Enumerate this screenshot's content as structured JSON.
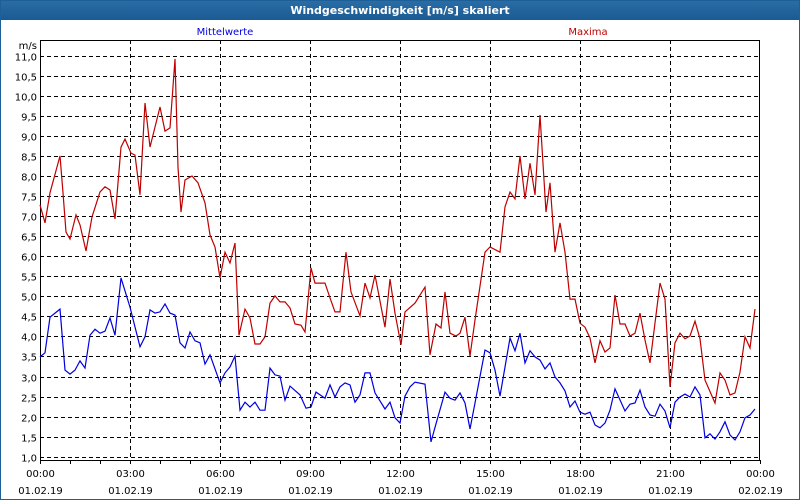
{
  "window": {
    "title": "Windgeschwindigkeit [m/s] skaliert"
  },
  "colors": {
    "mean": "#0000e0",
    "max": "#c00000",
    "frame": "#1d5f97"
  },
  "chart_data": {
    "type": "line",
    "title": "Windgeschwindigkeit [m/s] skaliert",
    "ylabel": "m/s",
    "xlabel": "",
    "ylim": [
      1.0,
      11.0
    ],
    "xlim_minutes": [
      0,
      1440
    ],
    "grid": true,
    "y_ticks": [
      "1,0",
      "1,5",
      "2,0",
      "2,5",
      "3,0",
      "3,5",
      "4,0",
      "4,5",
      "5,0",
      "5,5",
      "6,0",
      "6,5",
      "7,0",
      "7,5",
      "8,0",
      "8,5",
      "9,0",
      "9,5",
      "10,0",
      "10,5",
      "11,0"
    ],
    "x_ticks": [
      {
        "time": "00:00",
        "date": "01.02.19"
      },
      {
        "time": "03:00",
        "date": "01.02.19"
      },
      {
        "time": "06:00",
        "date": "01.02.19"
      },
      {
        "time": "09:00",
        "date": "01.02.19"
      },
      {
        "time": "12:00",
        "date": "01.02.19"
      },
      {
        "time": "15:00",
        "date": "01.02.19"
      },
      {
        "time": "18:00",
        "date": "01.02.19"
      },
      {
        "time": "21:00",
        "date": "01.02.19"
      },
      {
        "time": "00:00",
        "date": "02.02.19"
      }
    ],
    "series": [
      {
        "name": "Mittelwerte",
        "color": "#0000e0",
        "points_minute_value": [
          [
            0,
            3.49
          ],
          [
            10,
            3.59
          ],
          [
            20,
            4.48
          ],
          [
            40,
            4.68
          ],
          [
            50,
            3.16
          ],
          [
            60,
            3.06
          ],
          [
            70,
            3.16
          ],
          [
            80,
            3.39
          ],
          [
            90,
            3.21
          ],
          [
            100,
            4.03
          ],
          [
            110,
            4.18
          ],
          [
            120,
            4.08
          ],
          [
            130,
            4.13
          ],
          [
            140,
            4.46
          ],
          [
            150,
            4.03
          ],
          [
            162,
            5.46
          ],
          [
            180,
            4.73
          ],
          [
            200,
            3.74
          ],
          [
            210,
            3.99
          ],
          [
            220,
            4.66
          ],
          [
            230,
            4.58
          ],
          [
            240,
            4.61
          ],
          [
            250,
            4.81
          ],
          [
            260,
            4.58
          ],
          [
            270,
            4.53
          ],
          [
            280,
            3.84
          ],
          [
            290,
            3.71
          ],
          [
            300,
            4.11
          ],
          [
            310,
            3.89
          ],
          [
            320,
            3.84
          ],
          [
            330,
            3.31
          ],
          [
            340,
            3.54
          ],
          [
            360,
            2.84
          ],
          [
            370,
            3.09
          ],
          [
            380,
            3.24
          ],
          [
            390,
            3.51
          ],
          [
            400,
            2.16
          ],
          [
            410,
            2.36
          ],
          [
            420,
            2.24
          ],
          [
            430,
            2.36
          ],
          [
            440,
            2.16
          ],
          [
            450,
            2.16
          ],
          [
            460,
            3.21
          ],
          [
            470,
            3.04
          ],
          [
            480,
            3.01
          ],
          [
            490,
            2.41
          ],
          [
            500,
            2.76
          ],
          [
            520,
            2.54
          ],
          [
            532,
            2.21
          ],
          [
            542,
            2.24
          ],
          [
            552,
            2.61
          ],
          [
            570,
            2.46
          ],
          [
            580,
            2.79
          ],
          [
            590,
            2.49
          ],
          [
            600,
            2.74
          ],
          [
            610,
            2.84
          ],
          [
            620,
            2.79
          ],
          [
            630,
            2.36
          ],
          [
            640,
            2.54
          ],
          [
            650,
            3.09
          ],
          [
            660,
            3.09
          ],
          [
            670,
            2.59
          ],
          [
            690,
            2.19
          ],
          [
            700,
            2.36
          ],
          [
            710,
            1.97
          ],
          [
            720,
            1.84
          ],
          [
            730,
            2.51
          ],
          [
            740,
            2.74
          ],
          [
            750,
            2.86
          ],
          [
            770,
            2.81
          ],
          [
            782,
            1.37
          ],
          [
            792,
            1.82
          ],
          [
            810,
            2.61
          ],
          [
            820,
            2.46
          ],
          [
            830,
            2.41
          ],
          [
            840,
            2.59
          ],
          [
            850,
            2.34
          ],
          [
            860,
            1.69
          ],
          [
            870,
            2.34
          ],
          [
            890,
            3.66
          ],
          [
            900,
            3.59
          ],
          [
            910,
            3.16
          ],
          [
            920,
            2.51
          ],
          [
            940,
            3.96
          ],
          [
            950,
            3.64
          ],
          [
            960,
            4.08
          ],
          [
            970,
            3.34
          ],
          [
            980,
            3.64
          ],
          [
            990,
            3.49
          ],
          [
            1000,
            3.41
          ],
          [
            1010,
            3.19
          ],
          [
            1020,
            3.34
          ],
          [
            1030,
            2.99
          ],
          [
            1040,
            2.84
          ],
          [
            1050,
            2.64
          ],
          [
            1060,
            2.24
          ],
          [
            1070,
            2.39
          ],
          [
            1080,
            2.11
          ],
          [
            1090,
            2.06
          ],
          [
            1100,
            2.11
          ],
          [
            1110,
            1.79
          ],
          [
            1120,
            1.72
          ],
          [
            1130,
            1.84
          ],
          [
            1140,
            2.16
          ],
          [
            1150,
            2.69
          ],
          [
            1170,
            2.14
          ],
          [
            1180,
            2.31
          ],
          [
            1190,
            2.34
          ],
          [
            1200,
            2.66
          ],
          [
            1210,
            2.24
          ],
          [
            1220,
            2.04
          ],
          [
            1230,
            2.01
          ],
          [
            1240,
            2.31
          ],
          [
            1250,
            2.14
          ],
          [
            1260,
            1.72
          ],
          [
            1270,
            2.36
          ],
          [
            1280,
            2.49
          ],
          [
            1290,
            2.56
          ],
          [
            1300,
            2.49
          ],
          [
            1310,
            2.74
          ],
          [
            1320,
            2.54
          ],
          [
            1330,
            1.47
          ],
          [
            1340,
            1.57
          ],
          [
            1350,
            1.44
          ],
          [
            1360,
            1.62
          ],
          [
            1370,
            1.87
          ],
          [
            1380,
            1.54
          ],
          [
            1390,
            1.42
          ],
          [
            1400,
            1.62
          ],
          [
            1410,
            1.97
          ],
          [
            1420,
            2.04
          ],
          [
            1430,
            2.19
          ]
        ]
      },
      {
        "name": "Maxima",
        "color": "#c00000",
        "points_minute_value": [
          [
            0,
            7.28
          ],
          [
            10,
            6.83
          ],
          [
            20,
            7.58
          ],
          [
            40,
            8.5
          ],
          [
            46,
            7.58
          ],
          [
            52,
            6.6
          ],
          [
            60,
            6.43
          ],
          [
            72,
            7.03
          ],
          [
            80,
            6.78
          ],
          [
            92,
            6.13
          ],
          [
            104,
            6.98
          ],
          [
            120,
            7.6
          ],
          [
            130,
            7.73
          ],
          [
            140,
            7.65
          ],
          [
            150,
            6.93
          ],
          [
            162,
            8.72
          ],
          [
            170,
            8.92
          ],
          [
            182,
            8.57
          ],
          [
            190,
            8.52
          ],
          [
            200,
            7.53
          ],
          [
            210,
            9.82
          ],
          [
            220,
            8.72
          ],
          [
            240,
            9.72
          ],
          [
            250,
            9.12
          ],
          [
            260,
            9.2
          ],
          [
            270,
            10.92
          ],
          [
            276,
            8.22
          ],
          [
            282,
            7.1
          ],
          [
            290,
            7.9
          ],
          [
            304,
            8.0
          ],
          [
            316,
            7.83
          ],
          [
            330,
            7.33
          ],
          [
            340,
            6.53
          ],
          [
            350,
            6.23
          ],
          [
            360,
            5.46
          ],
          [
            370,
            6.1
          ],
          [
            380,
            5.83
          ],
          [
            390,
            6.33
          ],
          [
            398,
            4.03
          ],
          [
            410,
            4.68
          ],
          [
            420,
            4.46
          ],
          [
            430,
            3.81
          ],
          [
            440,
            3.81
          ],
          [
            450,
            3.99
          ],
          [
            460,
            4.83
          ],
          [
            470,
            5.01
          ],
          [
            480,
            4.86
          ],
          [
            490,
            4.86
          ],
          [
            500,
            4.71
          ],
          [
            510,
            4.31
          ],
          [
            522,
            4.28
          ],
          [
            530,
            4.11
          ],
          [
            542,
            5.71
          ],
          [
            550,
            5.33
          ],
          [
            570,
            5.33
          ],
          [
            580,
            4.96
          ],
          [
            590,
            4.61
          ],
          [
            600,
            4.61
          ],
          [
            612,
            6.1
          ],
          [
            622,
            5.11
          ],
          [
            640,
            4.51
          ],
          [
            650,
            5.33
          ],
          [
            660,
            4.96
          ],
          [
            670,
            5.53
          ],
          [
            690,
            4.23
          ],
          [
            700,
            5.43
          ],
          [
            710,
            4.58
          ],
          [
            722,
            3.79
          ],
          [
            730,
            4.61
          ],
          [
            750,
            4.83
          ],
          [
            770,
            5.23
          ],
          [
            780,
            3.54
          ],
          [
            792,
            4.31
          ],
          [
            802,
            4.21
          ],
          [
            810,
            5.11
          ],
          [
            820,
            4.08
          ],
          [
            832,
            4.01
          ],
          [
            840,
            4.08
          ],
          [
            850,
            4.48
          ],
          [
            860,
            3.51
          ],
          [
            870,
            4.41
          ],
          [
            890,
            6.1
          ],
          [
            900,
            6.23
          ],
          [
            920,
            6.1
          ],
          [
            930,
            7.23
          ],
          [
            940,
            7.6
          ],
          [
            950,
            7.43
          ],
          [
            960,
            8.5
          ],
          [
            970,
            7.43
          ],
          [
            980,
            8.32
          ],
          [
            990,
            7.53
          ],
          [
            1000,
            9.52
          ],
          [
            1012,
            7.1
          ],
          [
            1020,
            7.83
          ],
          [
            1030,
            6.1
          ],
          [
            1040,
            6.83
          ],
          [
            1050,
            6.1
          ],
          [
            1060,
            4.93
          ],
          [
            1070,
            4.93
          ],
          [
            1080,
            4.33
          ],
          [
            1090,
            4.23
          ],
          [
            1100,
            3.96
          ],
          [
            1110,
            3.34
          ],
          [
            1120,
            3.89
          ],
          [
            1130,
            3.61
          ],
          [
            1140,
            3.71
          ],
          [
            1150,
            5.03
          ],
          [
            1160,
            4.31
          ],
          [
            1170,
            4.31
          ],
          [
            1180,
            4.01
          ],
          [
            1190,
            4.08
          ],
          [
            1200,
            4.58
          ],
          [
            1210,
            3.91
          ],
          [
            1220,
            3.34
          ],
          [
            1240,
            5.33
          ],
          [
            1250,
            4.93
          ],
          [
            1260,
            2.74
          ],
          [
            1270,
            3.84
          ],
          [
            1280,
            4.08
          ],
          [
            1290,
            3.94
          ],
          [
            1300,
            4.01
          ],
          [
            1310,
            4.38
          ],
          [
            1320,
            3.94
          ],
          [
            1330,
            2.91
          ],
          [
            1350,
            2.34
          ],
          [
            1360,
            3.09
          ],
          [
            1370,
            2.91
          ],
          [
            1380,
            2.54
          ],
          [
            1390,
            2.59
          ],
          [
            1400,
            3.11
          ],
          [
            1410,
            3.99
          ],
          [
            1420,
            3.71
          ],
          [
            1430,
            4.68
          ]
        ]
      }
    ],
    "legend": [
      "Mittelwerte",
      "Maxima"
    ],
    "legend_placement": "top"
  }
}
